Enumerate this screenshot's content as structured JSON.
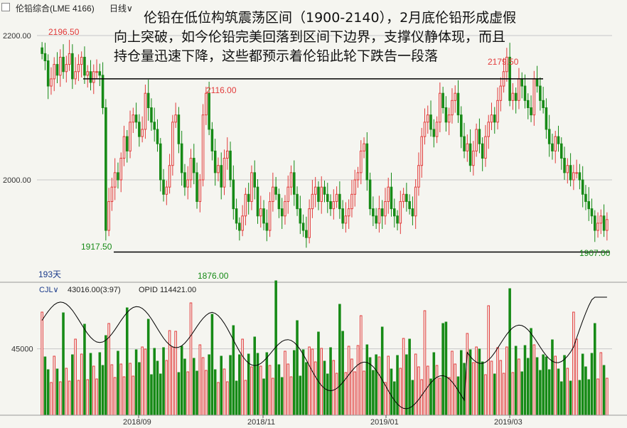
{
  "toolbar": {
    "instrument": "伦铅综合(LME 4166)",
    "period_label": "日线",
    "period_caret": "∨"
  },
  "annotation": {
    "line1": "伦铅在低位构筑震荡区间（1900-2140），2月底伦铅形成虚假",
    "line2": "向上突破，如今伦铅完美回落到区间下边界，支撑仪静体现，而且",
    "line3": "持仓量迅速下降，这些都预示着伦铅此轮下跌告一段落"
  },
  "colors": {
    "up": "#e23b3b",
    "down": "#168a16",
    "grid": "#c8c8c8",
    "oi_line": "#000000",
    "background": "#f5f5f0"
  },
  "chart_data": [
    {
      "type": "candlestick",
      "y_ticks": [
        "2200.00",
        "2000.00"
      ],
      "ylim": [
        1870,
        2220
      ],
      "x_ticks": [
        "2018/09",
        "2018/11",
        "2019/01",
        "2019/03"
      ],
      "bar_count_label": "193天",
      "levels": [
        {
          "name": "upper",
          "value": 2140
        },
        {
          "name": "lower",
          "value": 1900
        }
      ],
      "price_labels": [
        {
          "text": "2196.50",
          "color": "up"
        },
        {
          "text": "2116.00",
          "color": "up"
        },
        {
          "text": "2179.50",
          "color": "up"
        },
        {
          "text": "1917.50",
          "color": "down"
        },
        {
          "text": "1876.00",
          "color": "down"
        },
        {
          "text": "1907.00",
          "color": "down"
        }
      ],
      "close": [
        2175,
        2165,
        2130,
        2140,
        2160,
        2145,
        2170,
        2150,
        2160,
        2175,
        2140,
        2150,
        2160,
        2170,
        2145,
        2150,
        2135,
        2150,
        2150,
        2145,
        2100,
        1930,
        1970,
        1990,
        2010,
        2000,
        2030,
        2060,
        2040,
        2080,
        2090,
        2080,
        2060,
        2070,
        2120,
        2100,
        2080,
        2070,
        2050,
        2000,
        1980,
        1990,
        2020,
        2080,
        2090,
        2050,
        2010,
        1990,
        2000,
        2030,
        2010,
        1970,
        2000,
        2090,
        2120,
        2070,
        2040,
        2010,
        2020,
        1990,
        2030,
        2040,
        2000,
        1960,
        1940,
        1930,
        1950,
        1980,
        1970,
        2010,
        1990,
        1950,
        1960,
        1940,
        1930,
        1970,
        1990,
        1980,
        1960,
        1950,
        1970,
        1990,
        2010,
        1980,
        1960,
        1940,
        1930,
        1920,
        1960,
        1980,
        1990,
        1970,
        1990,
        1980,
        1970,
        1960,
        1970,
        1980,
        1960,
        1940,
        1950,
        1960,
        1980,
        2000,
        2010,
        2040,
        2050,
        2000,
        1960,
        1950,
        1940,
        1960,
        1950,
        1970,
        1990,
        1960,
        1950,
        1940,
        1970,
        1980,
        1970,
        1960,
        1950,
        1990,
        2020,
        2060,
        2080,
        2090,
        2070,
        2060,
        2080,
        2120,
        2100,
        2080,
        2090,
        2110,
        2120,
        2090,
        2060,
        2040,
        2050,
        2020,
        2040,
        2070,
        2050,
        2030,
        2060,
        2080,
        2090,
        2080,
        2110,
        2130,
        2150,
        2170,
        2110,
        2120,
        2110,
        2140,
        2130,
        2110,
        2100,
        2090,
        2140,
        2130,
        2110,
        2100,
        2070,
        2050,
        2040,
        2060,
        2050,
        2030,
        2010,
        2020,
        2000,
        2010,
        2010,
        2000,
        1980,
        1970,
        1960,
        1950,
        1930,
        1940,
        1950,
        1930,
        1945
      ],
      "oi_ylim": [
        40500,
        48500
      ],
      "oi_y_tick": "45000",
      "indicator_labels": {
        "cjl": "CJL∨",
        "cjl_value": "43016.00(3:97)",
        "opid": "OPID 114421.00"
      }
    }
  ]
}
